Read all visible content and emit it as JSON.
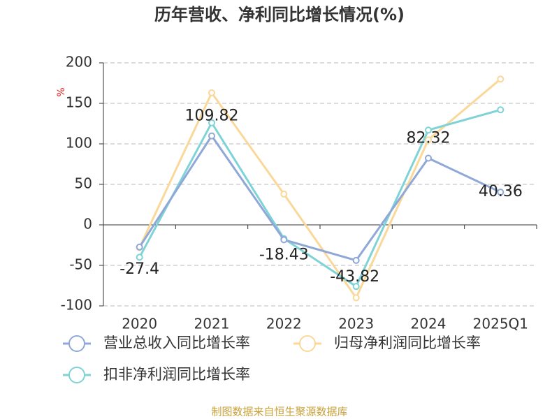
{
  "chart_data": {
    "type": "line",
    "title": "历年营收、净利同比增长情况(%)",
    "y_label": "%",
    "categories": [
      "2020",
      "2021",
      "2022",
      "2023",
      "2024",
      "2025Q1"
    ],
    "series": [
      {
        "name": "营业总收入同比增长率",
        "color": "#8fa8d8",
        "values": [
          -27.4,
          109.82,
          -18.43,
          -43.82,
          82.32,
          40.36
        ]
      },
      {
        "name": "归母净利润同比增长率",
        "color": "#f9d89a",
        "values": [
          -28,
          163,
          38,
          -90,
          105,
          180
        ]
      },
      {
        "name": "扣非净利润同比增长率",
        "color": "#7fd3d6",
        "values": [
          -40,
          126,
          -17,
          -76,
          117,
          142
        ]
      }
    ],
    "ylim": [
      -100,
      200
    ],
    "yticks": [
      -100,
      -50,
      0,
      50,
      100,
      150,
      200
    ],
    "grid": true,
    "source": "制图数据来自恒生聚源数据库"
  }
}
